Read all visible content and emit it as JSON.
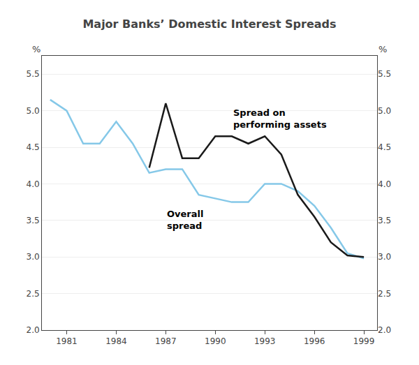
{
  "chart_data": {
    "type": "line",
    "title": "Major Banks’ Domestic Interest Spreads",
    "ylabel": "%",
    "y2label": "%",
    "x": [
      1980,
      1981,
      1982,
      1983,
      1984,
      1985,
      1986,
      1987,
      1988,
      1989,
      1990,
      1991,
      1992,
      1993,
      1994,
      1995,
      1996,
      1997,
      1998,
      1999
    ],
    "series": [
      {
        "color": "#85c8e8",
        "values": [
          5.15,
          5.0,
          4.55,
          4.55,
          4.85,
          4.55,
          4.15,
          4.2,
          4.2,
          3.85,
          3.8,
          3.75,
          3.75,
          4.0,
          4.0,
          3.9,
          3.7,
          3.4,
          3.05,
          2.98
        ]
      },
      {
        "color": "#1a1a1a",
        "values": [
          null,
          null,
          null,
          null,
          null,
          null,
          4.22,
          5.1,
          4.35,
          4.35,
          4.65,
          4.65,
          4.55,
          4.65,
          4.4,
          3.85,
          3.55,
          3.2,
          3.02,
          3.0
        ]
      }
    ],
    "annotations": [
      {
        "text": "Spread on\nperforming assets",
        "x": 1991.0,
        "y": 4.72
      },
      {
        "text": "Overall\nspread",
        "x": 1987.0,
        "y": 3.68
      }
    ],
    "xlim": [
      1979.5,
      1999.8
    ],
    "xticks": [
      1981,
      1984,
      1987,
      1990,
      1993,
      1996,
      1999
    ],
    "ylim": [
      2.0,
      5.75
    ],
    "yticks": [
      {
        "value": 2.0,
        "label": "2.0"
      },
      2.5,
      {
        "value": 3.0,
        "label": "3.0"
      },
      3.5,
      {
        "value": 4.0,
        "label": "4.0"
      },
      4.5,
      {
        "value": 5.0,
        "label": "5.0"
      },
      5.5
    ],
    "y2lim": [
      2.0,
      5.75
    ],
    "y2ticks": [
      {
        "value": 2.0,
        "label": "2.0"
      },
      2.5,
      {
        "value": 3.0,
        "label": "3.0"
      },
      3.5,
      {
        "value": 4.0,
        "label": "4.0"
      },
      4.5,
      {
        "value": 5.0,
        "label": "5.0"
      },
      5.5
    ],
    "grid": true
  }
}
